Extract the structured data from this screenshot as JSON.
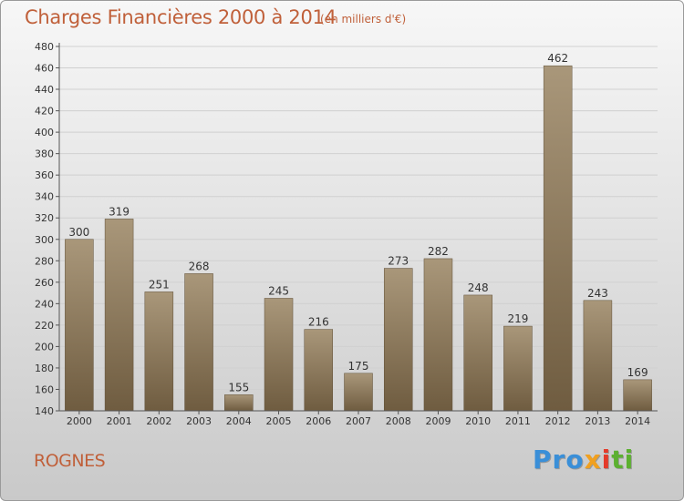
{
  "header": {
    "title": "Charges Financières 2000 à 2014",
    "subtitle": "(en milliers d'€)"
  },
  "footer": {
    "city": "ROGNES",
    "logo": {
      "p1": "Pro",
      "p2": "x",
      "p3": "i",
      "p4": "ti"
    }
  },
  "colors": {
    "title": "#c0603a",
    "bar_top": "#a9977a",
    "bar_bottom": "#6f5c40"
  },
  "chart_data": {
    "type": "bar",
    "title": "Charges Financières 2000 à 2014",
    "subtitle": "(en milliers d'€)",
    "xlabel": "",
    "ylabel": "",
    "categories": [
      "2000",
      "2001",
      "2002",
      "2003",
      "2004",
      "2005",
      "2006",
      "2007",
      "2008",
      "2009",
      "2010",
      "2011",
      "2012",
      "2013",
      "2014"
    ],
    "values": [
      300,
      319,
      251,
      268,
      155,
      245,
      216,
      175,
      273,
      282,
      248,
      219,
      462,
      243,
      169
    ],
    "ylim": [
      140,
      480
    ],
    "yticks": [
      140,
      160,
      180,
      200,
      220,
      240,
      260,
      280,
      300,
      320,
      340,
      360,
      380,
      400,
      420,
      440,
      460,
      480
    ],
    "grid": true,
    "legend": "none"
  }
}
